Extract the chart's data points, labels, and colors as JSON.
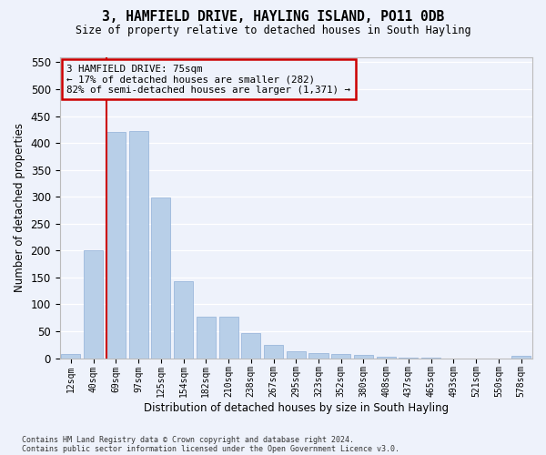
{
  "title": "3, HAMFIELD DRIVE, HAYLING ISLAND, PO11 0DB",
  "subtitle": "Size of property relative to detached houses in South Hayling",
  "xlabel": "Distribution of detached houses by size in South Hayling",
  "ylabel": "Number of detached properties",
  "annotation_line1": "3 HAMFIELD DRIVE: 75sqm",
  "annotation_line2": "← 17% of detached houses are smaller (282)",
  "annotation_line3": "82% of semi-detached houses are larger (1,371) →",
  "categories": [
    "12sqm",
    "40sqm",
    "69sqm",
    "97sqm",
    "125sqm",
    "154sqm",
    "182sqm",
    "210sqm",
    "238sqm",
    "267sqm",
    "295sqm",
    "323sqm",
    "352sqm",
    "380sqm",
    "408sqm",
    "437sqm",
    "465sqm",
    "493sqm",
    "521sqm",
    "550sqm",
    "578sqm"
  ],
  "values": [
    8,
    200,
    420,
    422,
    298,
    143,
    77,
    77,
    47,
    25,
    13,
    10,
    8,
    6,
    3,
    1,
    1,
    0,
    0,
    0,
    5
  ],
  "bar_color": "#b8cfe8",
  "bar_edge_color": "#90b0d8",
  "marker_index": 2,
  "marker_color": "#cc0000",
  "ylim_max": 560,
  "yticks": [
    0,
    50,
    100,
    150,
    200,
    250,
    300,
    350,
    400,
    450,
    500,
    550
  ],
  "bg_color": "#eef2fb",
  "grid_color": "#ffffff",
  "ann_border_color": "#cc0000",
  "footer1": "Contains HM Land Registry data © Crown copyright and database right 2024.",
  "footer2": "Contains public sector information licensed under the Open Government Licence v3.0."
}
